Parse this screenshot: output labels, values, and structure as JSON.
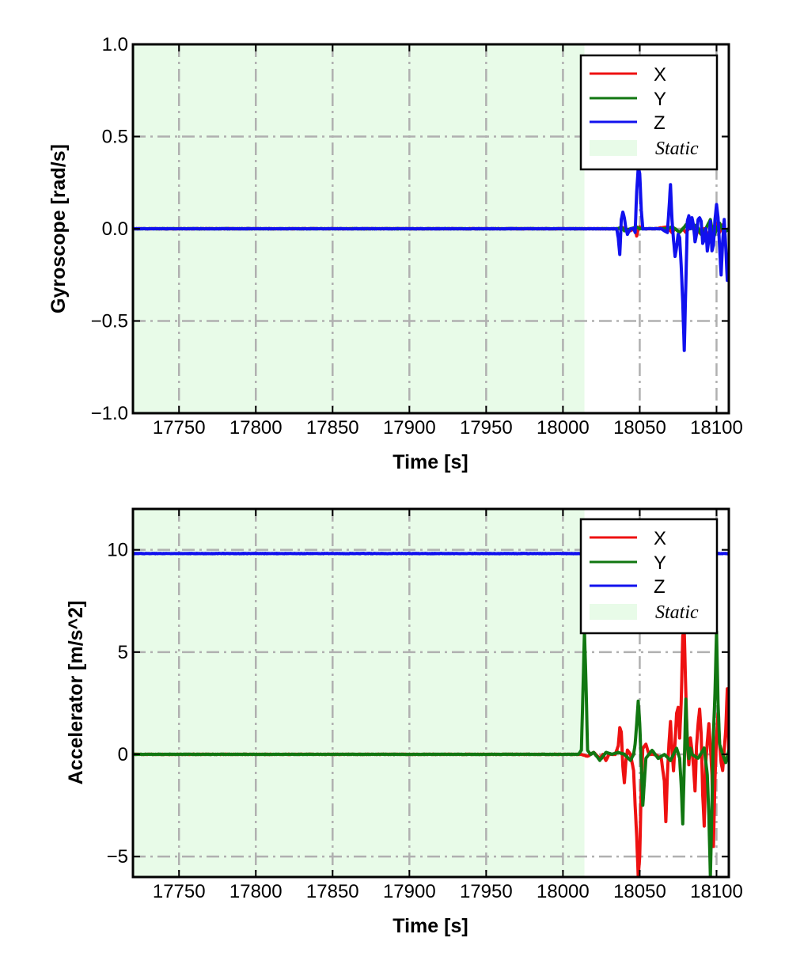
{
  "chart_data": [
    {
      "type": "line",
      "xlabel": "Time [s]",
      "ylabel": "Gyroscope [rad/s]",
      "xlim": [
        17720,
        18108
      ],
      "ylim": [
        -1.0,
        1.0
      ],
      "xticks": [
        17750,
        17800,
        17850,
        17900,
        17950,
        18000,
        18050,
        18100
      ],
      "xtick_labels": [
        "17750",
        "17800",
        "17850",
        "17900",
        "17950",
        "18000",
        "18050",
        "18100"
      ],
      "yticks": [
        -1.0,
        -0.5,
        0.0,
        0.5,
        1.0
      ],
      "ytick_labels": [
        "−1.0",
        "−0.5",
        "0.0",
        "0.5",
        "1.0"
      ],
      "grid": true,
      "legend_position": "top-right",
      "static_region": {
        "label": "Static",
        "x_start": 17720,
        "x_end": 18014,
        "color": "#e8fbe8"
      },
      "series": [
        {
          "name": "X",
          "color": "#ee1111",
          "x": [
            17720,
            18036,
            18038,
            18040,
            18044,
            18047,
            18048,
            18049,
            18050,
            18052,
            18060,
            18068,
            18071,
            18073,
            18076,
            18078,
            18080,
            18083,
            18086,
            18090,
            18092,
            18095,
            18097,
            18100,
            18102,
            18104,
            18106,
            18108
          ],
          "y": [
            0.0,
            0.0,
            0.01,
            0.0,
            -0.01,
            0.0,
            -0.04,
            0.0,
            0.01,
            0.0,
            0.0,
            0.01,
            -0.02,
            0.0,
            -0.02,
            0.0,
            -0.02,
            0.01,
            0.0,
            -0.03,
            0.0,
            -0.04,
            0.0,
            0.03,
            -0.02,
            0.02,
            -0.01,
            0.0
          ]
        },
        {
          "name": "Y",
          "color": "#117711",
          "x": [
            17720,
            18036,
            18038,
            18040,
            18044,
            18048,
            18050,
            18052,
            18060,
            18068,
            18071,
            18073,
            18076,
            18078,
            18081,
            18084,
            18087,
            18090,
            18093,
            18096,
            18098,
            18100,
            18102,
            18105,
            18108
          ],
          "y": [
            0.0,
            0.0,
            0.01,
            -0.01,
            0.0,
            0.01,
            0.0,
            0.0,
            0.0,
            0.0,
            0.01,
            0.0,
            -0.02,
            0.0,
            0.03,
            0.0,
            0.02,
            -0.03,
            0.0,
            0.05,
            -0.05,
            0.0,
            0.03,
            -0.02,
            0.0
          ]
        },
        {
          "name": "Z",
          "color": "#1111ee",
          "x": [
            17720,
            18035,
            18036,
            18037,
            18038,
            18039,
            18040,
            18041,
            18042,
            18044,
            18046,
            18047,
            18048,
            18049,
            18050,
            18051,
            18052,
            18054,
            18058,
            18064,
            18068,
            18069,
            18070,
            18071,
            18072,
            18073,
            18074,
            18075,
            18076,
            18077,
            18078,
            18079,
            18080,
            18081,
            18082,
            18083,
            18084,
            18085,
            18086,
            18087,
            18088,
            18089,
            18090,
            18091,
            18092,
            18093,
            18094,
            18095,
            18096,
            18097,
            18098,
            18099,
            18100,
            18101,
            18102,
            18103,
            18104,
            18105,
            18106,
            18107,
            18108
          ],
          "y": [
            0.0,
            0.0,
            -0.05,
            -0.14,
            0.05,
            0.09,
            0.06,
            0.0,
            -0.03,
            0.0,
            0.0,
            -0.02,
            0.2,
            0.33,
            0.3,
            0.1,
            0.0,
            0.0,
            0.0,
            0.0,
            -0.02,
            0.1,
            0.24,
            0.05,
            -0.06,
            -0.15,
            -0.1,
            -0.03,
            -0.05,
            -0.2,
            -0.4,
            -0.66,
            -0.3,
            0.04,
            0.07,
            0.0,
            0.06,
            0.02,
            -0.07,
            -0.03,
            0.05,
            0.06,
            0.04,
            -0.08,
            -0.06,
            0.0,
            -0.12,
            -0.06,
            0.04,
            -0.12,
            -0.09,
            0.05,
            0.13,
            0.06,
            -0.1,
            -0.25,
            -0.07,
            0.05,
            -0.1,
            -0.28,
            -0.26
          ]
        }
      ]
    },
    {
      "type": "line",
      "xlabel": "Time [s]",
      "ylabel": "Accelerator [m/s^2]",
      "xlim": [
        17720,
        18108
      ],
      "ylim": [
        -6,
        12
      ],
      "xticks": [
        17750,
        17800,
        17850,
        17900,
        17950,
        18000,
        18050,
        18100
      ],
      "xtick_labels": [
        "17750",
        "17800",
        "17850",
        "17900",
        "17950",
        "18000",
        "18050",
        "18100"
      ],
      "yticks": [
        -5,
        0,
        5,
        10
      ],
      "ytick_labels": [
        "−5",
        "0",
        "5",
        "10"
      ],
      "grid": true,
      "legend_position": "top-right",
      "static_region": {
        "label": "Static",
        "x_start": 17720,
        "x_end": 18014,
        "color": "#e8fbe8"
      },
      "series": [
        {
          "name": "X",
          "color": "#ee1111",
          "x": [
            17720,
            18012,
            18016,
            18020,
            18024,
            18026,
            18028,
            18030,
            18034,
            18036,
            18037,
            18038,
            18039,
            18040,
            18041,
            18042,
            18044,
            18046,
            18047,
            18048,
            18049,
            18050,
            18051,
            18052,
            18054,
            18056,
            18060,
            18064,
            18066,
            18067,
            18068,
            18069,
            18070,
            18071,
            18072,
            18073,
            18074,
            18075,
            18076,
            18077,
            18078,
            18079,
            18080,
            18081,
            18082,
            18083,
            18084,
            18085,
            18086,
            18087,
            18088,
            18089,
            18090,
            18091,
            18092,
            18093,
            18094,
            18095,
            18096,
            18097,
            18098,
            18099,
            18100,
            18101,
            18102,
            18103,
            18104,
            18105,
            18106,
            18107,
            18108
          ],
          "y": [
            0.0,
            0.0,
            -0.1,
            0.1,
            -0.2,
            0.0,
            -0.3,
            0.0,
            0.0,
            0.4,
            1.3,
            1.1,
            -0.6,
            -1.4,
            -0.3,
            0.2,
            0.0,
            -0.8,
            -2.5,
            -4.0,
            -6.0,
            -5.0,
            -1.5,
            0.3,
            0.5,
            0.0,
            0.0,
            -0.2,
            -1.3,
            -3.3,
            -1.0,
            0.5,
            1.6,
            0.2,
            -0.8,
            0.6,
            2.0,
            2.3,
            0.8,
            2.5,
            5.8,
            6.0,
            3.0,
            0.5,
            -0.5,
            0.8,
            0.2,
            -0.6,
            -1.8,
            0.4,
            1.5,
            2.2,
            1.0,
            -2.0,
            -3.5,
            -0.4,
            0.6,
            1.5,
            0.4,
            -1.0,
            -4.5,
            -1.2,
            0.8,
            2.0,
            0.5,
            -0.4,
            -0.8,
            0.2,
            1.2,
            3.2,
            0.0
          ]
        },
        {
          "name": "Y",
          "color": "#117711",
          "x": [
            17720,
            18010,
            18012,
            18013,
            18014,
            18015,
            18016,
            18018,
            18020,
            18024,
            18028,
            18032,
            18036,
            18040,
            18044,
            18046,
            18047,
            18048,
            18049,
            18050,
            18051,
            18052,
            18054,
            18058,
            18062,
            18066,
            18070,
            18074,
            18076,
            18077,
            18078,
            18079,
            18080,
            18081,
            18082,
            18083,
            18084,
            18088,
            18092,
            18094,
            18095,
            18096,
            18097,
            18098,
            18099,
            18100,
            18101,
            18102,
            18104,
            18106,
            18108
          ],
          "y": [
            0.0,
            0.0,
            0.2,
            3.0,
            6.0,
            3.5,
            0.2,
            0.0,
            0.1,
            -0.3,
            0.1,
            0.0,
            0.1,
            0.0,
            -0.3,
            0.0,
            0.5,
            1.5,
            2.6,
            1.5,
            -0.5,
            -2.5,
            -0.2,
            0.2,
            -0.2,
            0.0,
            -0.3,
            0.3,
            -0.2,
            -1.5,
            -3.4,
            -0.5,
            2.7,
            0.5,
            -0.2,
            0.3,
            0.0,
            -0.2,
            0.3,
            -1.0,
            -3.0,
            -6.0,
            -2.5,
            1.0,
            3.0,
            6.0,
            2.5,
            0.5,
            0.0,
            -0.4,
            0.2
          ]
        },
        {
          "name": "Z",
          "color": "#1111ee",
          "x": [
            17720,
            18010,
            18012,
            18014,
            18016,
            18018,
            18020,
            18024,
            18100,
            18102,
            18104,
            18106,
            18108
          ],
          "y": [
            9.82,
            9.82,
            9.82,
            9.6,
            9.82,
            9.84,
            9.82,
            9.82,
            9.82,
            9.82,
            9.82,
            9.82,
            9.82
          ]
        }
      ]
    }
  ]
}
